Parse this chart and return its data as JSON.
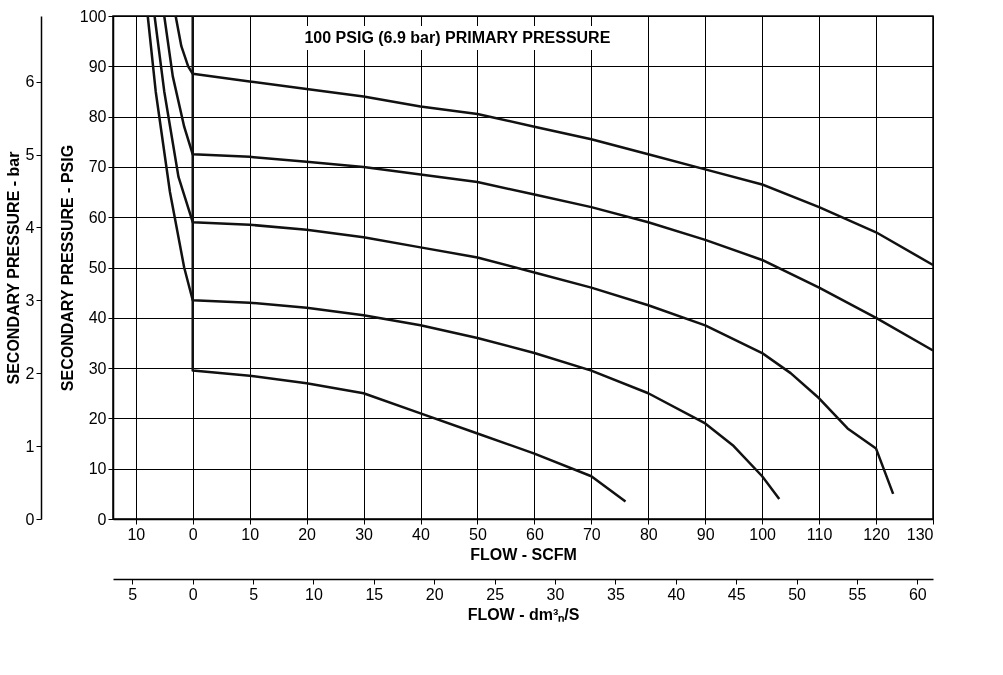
{
  "chart_data": {
    "type": "line",
    "title": "100 PSIG (6.9 bar) PRIMARY PRESSURE",
    "xlabel": "FLOW - SCFM",
    "ylabel": "SECONDARY PRESSURE - PSIG",
    "y2label": "SECONDARY PRESSURE - bar",
    "x2label": "FLOW - dm³ₙ/S",
    "xlim": [
      -14,
      130
    ],
    "xticks": [
      {
        "value": -10,
        "label": "10"
      },
      0,
      10,
      20,
      30,
      40,
      50,
      60,
      70,
      80,
      90,
      100,
      110,
      120,
      130
    ],
    "ylim": [
      0,
      100
    ],
    "yticks": [
      0,
      10,
      20,
      30,
      40,
      50,
      60,
      70,
      80,
      90,
      100
    ],
    "x2lim": [
      -6.6,
      61.3
    ],
    "x2ticks": [
      {
        "value": -5,
        "label": "5"
      },
      0,
      5,
      10,
      15,
      20,
      25,
      30,
      35,
      40,
      45,
      50,
      55,
      60
    ],
    "y2lim": [
      0,
      6.9
    ],
    "y2ticks": [
      0,
      1,
      2,
      3,
      4,
      5,
      6
    ],
    "grid": true,
    "marker": "none",
    "line_style": "solid",
    "series": [
      {
        "color": "#111111",
        "x": [
          -3,
          -2,
          -0.8,
          0,
          10,
          20,
          30,
          40,
          50,
          60,
          70,
          80,
          90,
          100,
          110,
          120,
          130
        ],
        "values": [
          100,
          94,
          90,
          88.5,
          87,
          85.5,
          84,
          82,
          80.5,
          78,
          75.5,
          72.5,
          69.5,
          66.5,
          62,
          57,
          50.5
        ]
      },
      {
        "color": "#111111",
        "x": [
          -5,
          -3.5,
          -1.5,
          0,
          10,
          20,
          30,
          40,
          50,
          60,
          70,
          80,
          90,
          100,
          110,
          120,
          130
        ],
        "values": [
          100,
          88,
          78,
          72.5,
          72,
          71,
          70,
          68.5,
          67,
          64.5,
          62,
          59,
          55.5,
          51.5,
          46,
          40,
          33.5
        ]
      },
      {
        "color": "#111111",
        "x": [
          -6.7,
          -5,
          -2.5,
          0,
          10,
          20,
          30,
          40,
          50,
          60,
          70,
          80,
          90,
          100,
          105,
          110,
          115,
          120,
          123
        ],
        "values": [
          100,
          85,
          68,
          59,
          58.5,
          57.5,
          56,
          54,
          52,
          49,
          46,
          42.5,
          38.5,
          33,
          29,
          24,
          18,
          14,
          5
        ]
      },
      {
        "color": "#111111",
        "x": [
          -7.9,
          -6.5,
          -4,
          -1.5,
          0,
          10,
          20,
          30,
          40,
          50,
          60,
          70,
          80,
          90,
          95,
          100,
          103
        ],
        "values": [
          100,
          85,
          65,
          50,
          43.5,
          43,
          42,
          40.5,
          38.5,
          36,
          33,
          29.5,
          25,
          19,
          14.5,
          8.5,
          4
        ]
      },
      {
        "color": "#111111",
        "x": [
          0,
          0,
          10,
          20,
          30,
          40,
          50,
          60,
          70,
          76
        ],
        "values": [
          100,
          29.5,
          28.5,
          27,
          25,
          21,
          17,
          13,
          8.5,
          3.5
        ]
      }
    ]
  }
}
